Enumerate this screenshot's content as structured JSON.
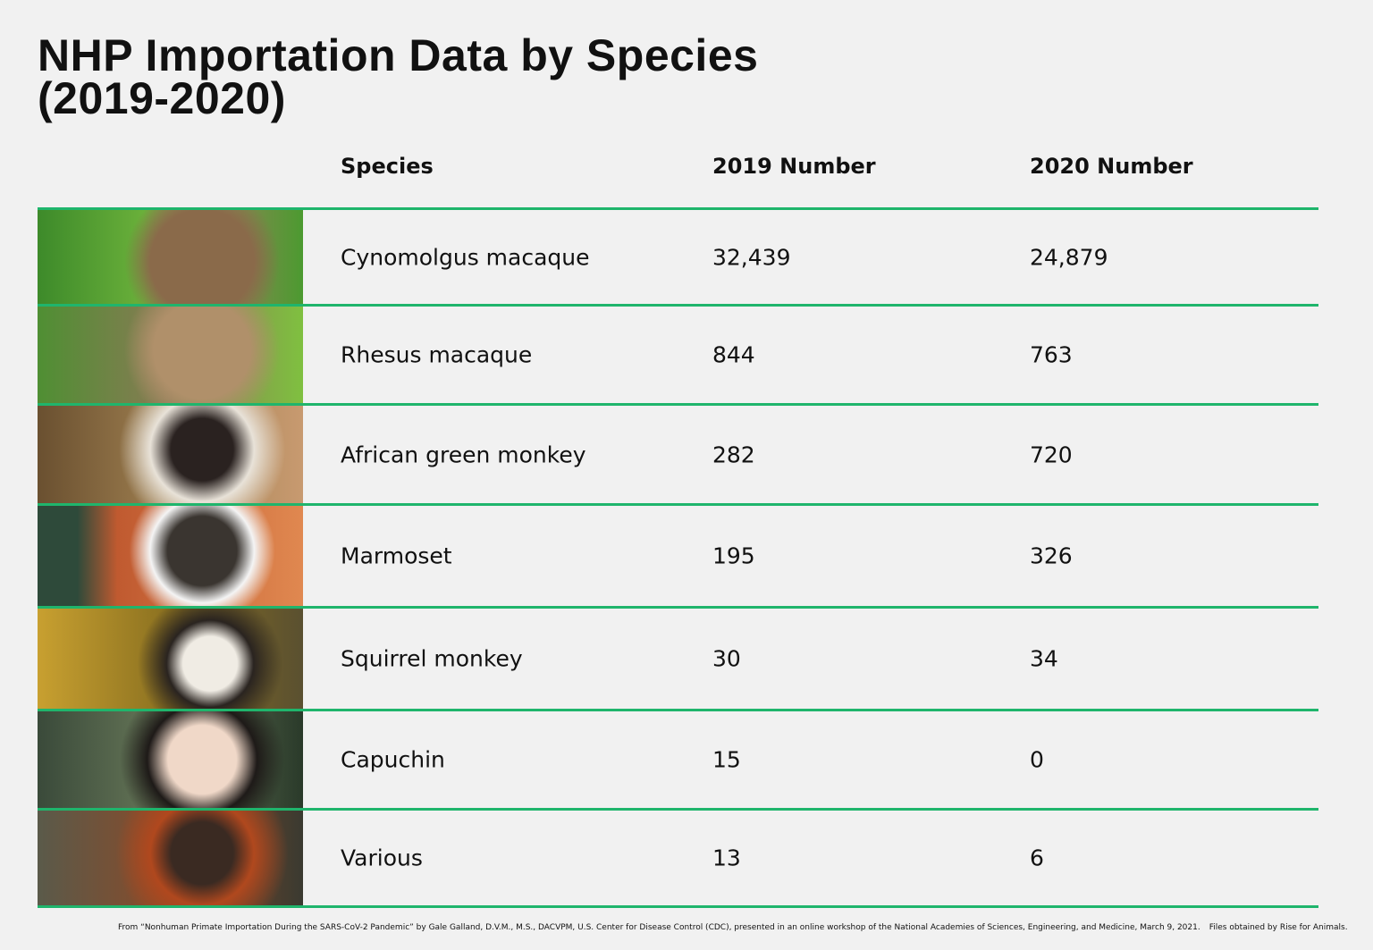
{
  "header": {
    "title": [
      "NHP Importation Data by Species",
      "(2019-2020)"
    ]
  },
  "table": {
    "columns": [
      "Species",
      "2019 Number",
      "2020 Number"
    ],
    "rows": [
      [
        "Cynomolgus macaque",
        "32,439",
        "24,879"
      ],
      [
        "Rhesus macaque",
        "844",
        "763"
      ],
      [
        "African green monkey",
        "282",
        "720"
      ],
      [
        "Marmoset",
        "195",
        "326"
      ],
      [
        "Squirrel monkey",
        "30",
        "34"
      ],
      [
        "Capuchin",
        "15",
        "0"
      ],
      [
        "Various",
        "13",
        "6"
      ]
    ]
  },
  "footer": [
    "From “Nonhuman Primate Importation During the SARS-CoV-2 Pandemic” by Gale Galland, D.V.M., M.S., DACVPM, U.S. Center for Disease Control (CDC), presented in an online workshop of the National Academies of Sciences, Engineering, and Medicine, March 9, 2021.",
    "Files obtained by Rise for Animals."
  ]
}
